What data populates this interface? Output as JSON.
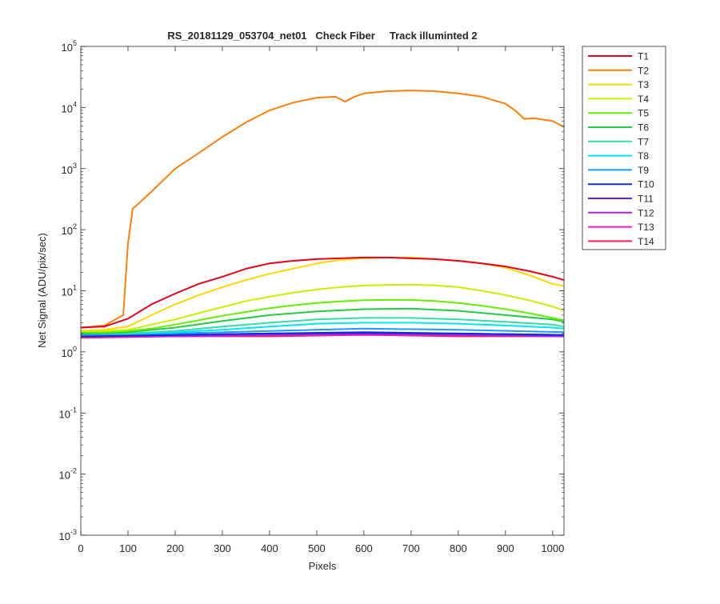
{
  "chart_data": {
    "type": "line",
    "title": "RS_20181129_053704_net01   Check Fiber     Track illuminted 2",
    "xlabel": "Pixels",
    "ylabel": "Net Signal (ADU/pix/sec)",
    "xlim": [
      0,
      1024
    ],
    "ylim": [
      0.001,
      100000
    ],
    "yscale": "log",
    "grid": false,
    "legend_position": "outside-right",
    "x_ticks": [
      0,
      100,
      200,
      300,
      400,
      500,
      600,
      700,
      800,
      900,
      1000
    ],
    "x_tick_labels": [
      "0",
      "100",
      "200",
      "300",
      "400",
      "500",
      "600",
      "700",
      "800",
      "900",
      "1000"
    ],
    "y_ticks": [
      0.001,
      0.01,
      0.1,
      1,
      10,
      100,
      1000,
      10000,
      100000
    ],
    "y_tick_labels": [
      {
        "base": "10",
        "exp": "-3"
      },
      {
        "base": "10",
        "exp": "-2"
      },
      {
        "base": "10",
        "exp": "-1"
      },
      {
        "base": "10",
        "exp": "0"
      },
      {
        "base": "10",
        "exp": "1"
      },
      {
        "base": "10",
        "exp": "2"
      },
      {
        "base": "10",
        "exp": "3"
      },
      {
        "base": "10",
        "exp": "4"
      },
      {
        "base": "10",
        "exp": "5"
      }
    ],
    "series": [
      {
        "name": "T1",
        "color": "#e6001a",
        "x": [
          0,
          50,
          100,
          150,
          200,
          250,
          300,
          350,
          400,
          450,
          500,
          550,
          600,
          650,
          700,
          750,
          800,
          850,
          900,
          950,
          1000,
          1024
        ],
        "y": [
          2.5,
          2.6,
          3.5,
          6,
          9,
          13,
          17,
          23,
          28,
          31,
          33,
          34,
          35,
          35,
          34,
          33,
          31,
          28,
          25,
          21,
          17,
          15
        ]
      },
      {
        "name": "T2",
        "color": "#ff7f0e",
        "x": [
          0,
          50,
          90,
          100,
          110,
          150,
          200,
          250,
          300,
          350,
          400,
          450,
          500,
          540,
          560,
          580,
          600,
          650,
          700,
          750,
          800,
          850,
          900,
          920,
          940,
          960,
          1000,
          1024
        ],
        "y": [
          2.5,
          2.7,
          4,
          60,
          220,
          420,
          1000,
          1800,
          3300,
          5700,
          9000,
          12000,
          14500,
          15000,
          12500,
          15000,
          17000,
          18500,
          19000,
          18500,
          17000,
          15000,
          11500,
          9000,
          6500,
          6700,
          6000,
          4800
        ]
      },
      {
        "name": "T3",
        "color": "#ffd700",
        "x": [
          0,
          50,
          100,
          150,
          200,
          250,
          300,
          350,
          400,
          450,
          500,
          550,
          600,
          650,
          700,
          750,
          800,
          850,
          900,
          950,
          1000,
          1024
        ],
        "y": [
          2.2,
          2.3,
          2.6,
          4,
          6,
          8.5,
          11.5,
          15,
          19,
          23,
          28,
          32,
          34,
          35,
          35,
          33,
          31,
          28,
          24,
          18,
          13,
          12
        ]
      },
      {
        "name": "T4",
        "color": "#c8f000",
        "x": [
          0,
          50,
          100,
          150,
          200,
          250,
          300,
          350,
          400,
          450,
          500,
          550,
          600,
          650,
          700,
          750,
          800,
          850,
          900,
          950,
          1000,
          1024
        ],
        "y": [
          2.2,
          2.2,
          2.3,
          2.8,
          3.4,
          4.3,
          5.4,
          6.8,
          8,
          9.3,
          10.5,
          11.5,
          12.2,
          12.5,
          12.6,
          12.3,
          11.5,
          10,
          8.5,
          7,
          5.5,
          4.8
        ]
      },
      {
        "name": "T5",
        "color": "#66ee00",
        "x": [
          0,
          50,
          100,
          150,
          200,
          250,
          300,
          350,
          400,
          450,
          500,
          550,
          600,
          650,
          700,
          750,
          800,
          850,
          900,
          950,
          1000,
          1024
        ],
        "y": [
          2.1,
          2.1,
          2.2,
          2.4,
          2.8,
          3.3,
          3.9,
          4.5,
          5.2,
          5.8,
          6.3,
          6.7,
          7,
          7.1,
          7.1,
          6.8,
          6.3,
          5.7,
          5,
          4.3,
          3.6,
          3.3
        ]
      },
      {
        "name": "T6",
        "color": "#22cc44",
        "x": [
          0,
          100,
          200,
          300,
          400,
          500,
          600,
          700,
          800,
          900,
          1000,
          1024
        ],
        "y": [
          2,
          2.1,
          2.5,
          3.2,
          4,
          4.6,
          5,
          5.1,
          4.7,
          4,
          3.4,
          3.1
        ]
      },
      {
        "name": "T7",
        "color": "#33ddaa",
        "x": [
          0,
          100,
          200,
          300,
          400,
          500,
          600,
          700,
          800,
          900,
          1000,
          1024
        ],
        "y": [
          2,
          2,
          2.2,
          2.6,
          3,
          3.4,
          3.6,
          3.6,
          3.4,
          3.1,
          2.8,
          2.6
        ]
      },
      {
        "name": "T8",
        "color": "#00e5ee",
        "x": [
          0,
          100,
          200,
          300,
          400,
          500,
          600,
          700,
          800,
          900,
          1000,
          1024
        ],
        "y": [
          2,
          2,
          2.1,
          2.3,
          2.6,
          2.9,
          3,
          3,
          2.9,
          2.7,
          2.5,
          2.4
        ]
      },
      {
        "name": "T9",
        "color": "#1a9bff",
        "x": [
          0,
          200,
          400,
          600,
          800,
          1024
        ],
        "y": [
          1.9,
          2,
          2.2,
          2.4,
          2.3,
          2.1
        ]
      },
      {
        "name": "T10",
        "color": "#0a2dd6",
        "x": [
          0,
          200,
          400,
          600,
          800,
          1024
        ],
        "y": [
          1.8,
          1.9,
          2,
          2.1,
          2,
          1.9
        ]
      },
      {
        "name": "T11",
        "color": "#5a1ee6",
        "x": [
          0,
          200,
          400,
          600,
          800,
          1024
        ],
        "y": [
          1.8,
          1.9,
          2,
          2,
          2,
          1.9
        ]
      },
      {
        "name": "T12",
        "color": "#b01eee",
        "x": [
          0,
          200,
          400,
          600,
          800,
          1024
        ],
        "y": [
          1.8,
          1.8,
          1.9,
          2,
          1.9,
          1.8
        ]
      },
      {
        "name": "T13",
        "color": "#ee1ecc",
        "x": [
          0,
          200,
          400,
          600,
          800,
          1024
        ],
        "y": [
          1.8,
          1.8,
          1.9,
          1.9,
          1.9,
          1.8
        ]
      },
      {
        "name": "T14",
        "color": "#ff1e5a",
        "x": [
          0,
          200,
          400,
          600,
          800,
          1024
        ],
        "y": [
          1.7,
          1.8,
          1.8,
          1.9,
          1.8,
          1.8
        ]
      }
    ]
  }
}
